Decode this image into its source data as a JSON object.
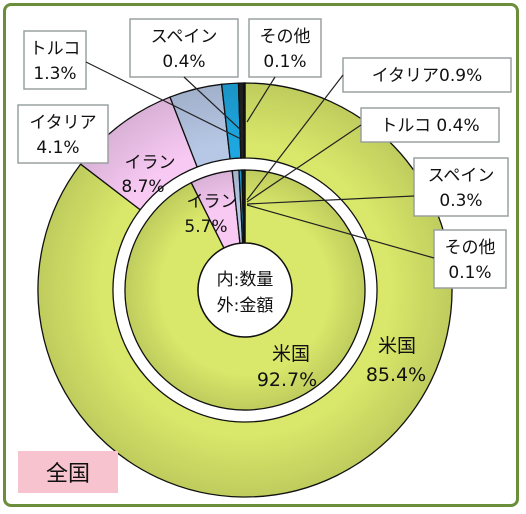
{
  "chart_data": [
    {
      "type": "pie",
      "ring": "outer",
      "slices": [
        {
          "label": "米国",
          "value": 85.4,
          "value_label": "85.4%",
          "color": "#d9e86a"
        },
        {
          "label": "イラン",
          "value": 8.7,
          "value_label": "8.7%",
          "color": "#f7c9f3"
        },
        {
          "label": "イタリア",
          "value": 4.1,
          "value_label": "4.1%",
          "color": "#b7c8e6"
        },
        {
          "label": "トルコ",
          "value": 1.3,
          "value_label": "1.3%",
          "color": "#1ea7e0"
        },
        {
          "label": "スペイン",
          "value": 0.4,
          "value_label": "0.4%",
          "color": "#222222"
        },
        {
          "label": "その他",
          "value": 0.1,
          "value_label": "0.1%",
          "color": "#3b5bb0"
        }
      ]
    },
    {
      "type": "pie",
      "ring": "inner",
      "slices": [
        {
          "label": "米国",
          "value": 92.7,
          "value_label": "92.7%",
          "color": "#d9e86a"
        },
        {
          "label": "イラン",
          "value": 5.7,
          "value_label": "5.7%",
          "color": "#f7c9f3"
        },
        {
          "label": "イタリア",
          "value": 0.9,
          "value_label": "0.9%",
          "color": "#b7c8e6"
        },
        {
          "label": "トルコ",
          "value": 0.4,
          "value_label": "0.4%",
          "color": "#1ea7e0"
        },
        {
          "label": "スペイン",
          "value": 0.3,
          "value_label": "0.3%",
          "color": "#222222"
        },
        {
          "label": "その他",
          "value": 0.1,
          "value_label": "0.1%",
          "color": "#3b5bb0"
        }
      ]
    }
  ],
  "center_label_line1": "内:数量",
  "center_label_line2": "外:金額",
  "region_label": "全国",
  "callouts": {
    "outer_turkey_name": "トルコ",
    "outer_spain_name": "スペイン",
    "outer_other_name": "その他",
    "inner_italy": "イタリア0.9%",
    "inner_turkey": "トルコ 0.4%",
    "inner_spain_name": "スペイン",
    "inner_other_name": "その他"
  }
}
